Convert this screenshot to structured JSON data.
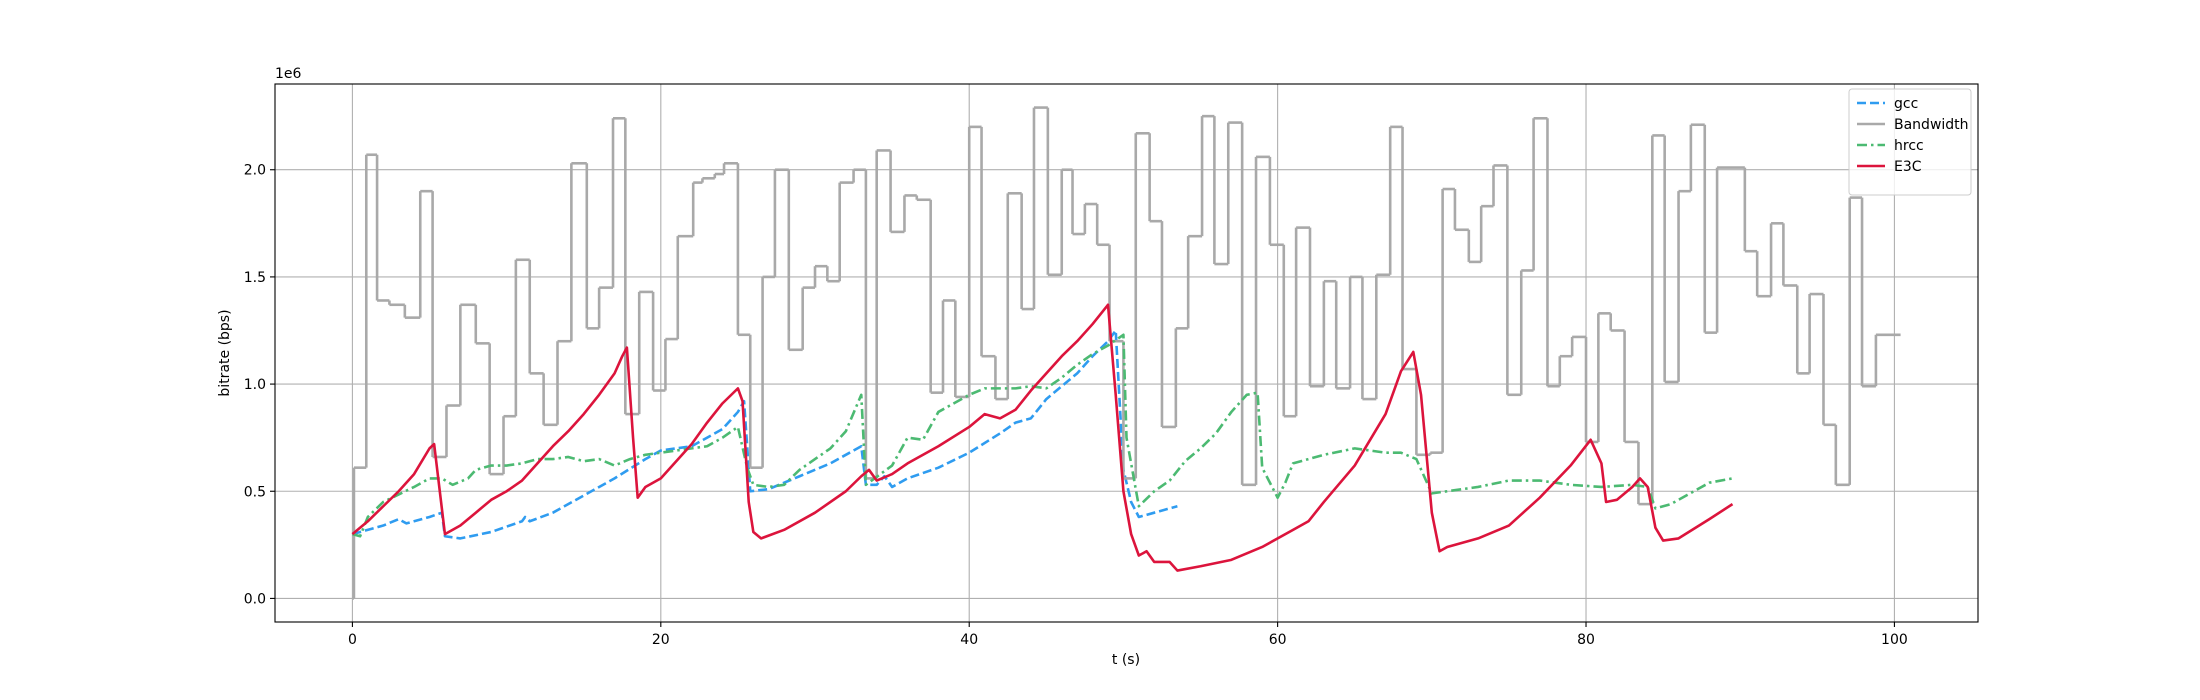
{
  "chart_data": {
    "type": "line",
    "xlabel": "t (s)",
    "ylabel": "bitrate (bps)",
    "y_offset_label": "1e6",
    "xlim": [
      -5.02,
      105.42
    ],
    "ylim": [
      -0.11,
      2.4
    ],
    "xticks": [
      0,
      20,
      40,
      60,
      80,
      100
    ],
    "yticks": [
      {
        "value": 0,
        "label": "0.0"
      },
      0.5,
      {
        "value": 1,
        "label": "1.0"
      },
      1.5,
      {
        "value": 2,
        "label": "2.0"
      }
    ],
    "grid": true,
    "legend": "upper right",
    "series": [
      {
        "name": "gcc",
        "color": "#2f9cf0",
        "linestyle": "dashed",
        "drawstyle": "default",
        "x": [
          0,
          2,
          3,
          3.5,
          5,
          5.8,
          6,
          7,
          9,
          11,
          11.2,
          11.5,
          13,
          15,
          17,
          19,
          20,
          22,
          24,
          25,
          25.4,
          25.8,
          27,
          29,
          31,
          33,
          33.3,
          34,
          34.5,
          35,
          36,
          38,
          40,
          42,
          43,
          44,
          45,
          47,
          48,
          49,
          49.5,
          50,
          50.5,
          51,
          52,
          53.5
        ],
        "values": [
          0.3,
          0.34,
          0.37,
          0.35,
          0.38,
          0.4,
          0.29,
          0.28,
          0.31,
          0.36,
          0.38,
          0.36,
          0.4,
          0.48,
          0.56,
          0.65,
          0.69,
          0.71,
          0.79,
          0.87,
          0.92,
          0.5,
          0.51,
          0.57,
          0.63,
          0.71,
          0.53,
          0.53,
          0.57,
          0.52,
          0.56,
          0.61,
          0.68,
          0.77,
          0.82,
          0.84,
          0.93,
          1.05,
          1.13,
          1.2,
          1.25,
          0.6,
          0.45,
          0.38,
          0.4,
          0.43
        ]
      },
      {
        "name": "Bandwidth",
        "color": "#a9a9a9",
        "linestyle": "solid",
        "drawstyle": "steps-post",
        "x": [
          0,
          0.1,
          0.9,
          1.6,
          2.4,
          3.4,
          4.4,
          5.2,
          6.1,
          7.0,
          8.0,
          8.9,
          9.8,
          10.6,
          11.5,
          12.4,
          13.3,
          14.2,
          15.2,
          16.0,
          16.9,
          17.7,
          18.6,
          19.5,
          20.3,
          21.1,
          22.1,
          22.7,
          23.5,
          24.1,
          25.0,
          25.8,
          26.6,
          27.4,
          28.3,
          29.2,
          30.0,
          30.8,
          31.6,
          32.5,
          33.3,
          34.0,
          34.9,
          35.8,
          36.6,
          37.5,
          38.3,
          39.1,
          40.0,
          40.8,
          41.7,
          42.5,
          43.4,
          44.2,
          45.1,
          46.0,
          46.7,
          47.5,
          48.3,
          49.1,
          50.0,
          50.8,
          51.7,
          52.5,
          53.4,
          54.2,
          55.1,
          55.9,
          56.8,
          57.7,
          58.6,
          59.5,
          60.4,
          61.2,
          62.1,
          63.0,
          63.8,
          64.7,
          65.5,
          66.4,
          67.3,
          68.1,
          69.0,
          69.9,
          70.7,
          71.5,
          72.4,
          73.2,
          74.0,
          74.9,
          75.8,
          76.6,
          77.5,
          78.3,
          79.1,
          80.0,
          80.8,
          81.6,
          82.5,
          83.4,
          84.3,
          85.1,
          86.0,
          86.8,
          87.7,
          88.5,
          90.3,
          91.1,
          92.0,
          92.8,
          93.7,
          94.5,
          95.4,
          96.2,
          97.1,
          97.9,
          98.8,
          100.4
        ],
        "values": [
          0,
          0.61,
          2.07,
          1.39,
          1.37,
          1.31,
          1.9,
          0.66,
          0.9,
          1.37,
          1.19,
          0.58,
          0.85,
          1.58,
          1.05,
          0.81,
          1.2,
          2.03,
          1.26,
          1.45,
          2.24,
          0.86,
          1.43,
          0.97,
          1.21,
          1.69,
          1.94,
          1.96,
          1.98,
          2.03,
          1.23,
          0.61,
          1.5,
          2.0,
          1.16,
          1.45,
          1.55,
          1.48,
          1.94,
          2.0,
          0.56,
          2.09,
          1.71,
          1.88,
          1.86,
          0.96,
          1.39,
          0.94,
          2.2,
          1.13,
          0.93,
          1.89,
          1.35,
          2.29,
          1.51,
          2.0,
          1.7,
          1.84,
          1.65,
          1.2,
          0.56,
          2.17,
          1.76,
          0.8,
          1.26,
          1.69,
          2.25,
          1.56,
          2.22,
          0.53,
          2.06,
          1.65,
          0.85,
          1.73,
          0.99,
          1.48,
          0.98,
          1.5,
          0.93,
          1.51,
          2.2,
          1.07,
          0.67,
          0.68,
          1.91,
          1.72,
          1.57,
          1.83,
          2.02,
          0.95,
          1.53,
          2.24,
          0.99,
          1.13,
          1.22,
          0.73,
          1.33,
          1.25,
          0.73,
          0.44,
          2.16,
          1.01,
          1.9,
          2.21,
          1.24,
          2.01,
          1.62,
          1.41,
          1.75,
          1.46,
          1.05,
          1.42,
          0.81,
          0.53,
          1.87,
          0.99,
          1.23,
          1.23
        ]
      },
      {
        "name": "hrcc",
        "color": "#4cba72",
        "linestyle": "dashdot",
        "drawstyle": "default",
        "x": [
          0,
          0.5,
          1,
          2,
          4,
          5,
          5.8,
          6.5,
          7.5,
          8,
          9,
          10,
          11,
          12,
          13,
          14,
          15,
          16,
          17,
          18,
          19,
          21,
          23,
          24,
          25,
          25.6,
          26,
          27,
          28,
          29,
          31,
          32,
          33,
          33.3,
          35,
          36,
          37,
          38,
          39,
          40,
          41,
          43,
          44,
          45,
          46,
          47,
          48,
          49,
          50,
          50.2,
          51,
          52,
          53,
          54,
          55,
          56,
          57,
          58,
          58.7,
          59,
          60,
          60.5,
          61,
          63,
          65,
          67,
          68,
          69,
          70,
          71,
          73,
          75,
          77,
          79,
          81,
          83,
          84,
          84.5,
          85.5,
          87,
          88,
          89.5
        ],
        "values": [
          0.3,
          0.29,
          0.38,
          0.45,
          0.52,
          0.56,
          0.56,
          0.53,
          0.56,
          0.6,
          0.62,
          0.62,
          0.63,
          0.65,
          0.65,
          0.66,
          0.64,
          0.65,
          0.62,
          0.65,
          0.67,
          0.69,
          0.71,
          0.75,
          0.8,
          0.61,
          0.53,
          0.52,
          0.53,
          0.6,
          0.7,
          0.78,
          0.95,
          0.53,
          0.62,
          0.75,
          0.74,
          0.87,
          0.91,
          0.95,
          0.98,
          0.98,
          0.99,
          0.98,
          1.03,
          1.09,
          1.14,
          1.18,
          1.23,
          0.75,
          0.43,
          0.5,
          0.55,
          0.64,
          0.7,
          0.77,
          0.87,
          0.95,
          0.96,
          0.61,
          0.47,
          0.54,
          0.63,
          0.67,
          0.7,
          0.68,
          0.68,
          0.65,
          0.49,
          0.5,
          0.52,
          0.55,
          0.55,
          0.53,
          0.52,
          0.53,
          0.52,
          0.42,
          0.44,
          0.5,
          0.54,
          0.56
        ]
      },
      {
        "name": "E3C",
        "color": "#dc143c",
        "linestyle": "solid",
        "drawstyle": "default",
        "x": [
          0,
          1,
          2,
          3,
          4,
          5,
          5.3,
          6,
          7,
          8,
          9,
          10,
          11,
          12,
          13,
          14,
          15,
          16,
          17,
          17.5,
          17.8,
          18.2,
          18.5,
          19,
          20,
          21,
          22,
          23,
          24,
          25,
          25.3,
          25.7,
          26,
          26.5,
          28,
          30,
          32,
          33,
          33.5,
          34,
          35,
          36,
          38,
          40,
          41,
          42,
          43,
          44,
          45,
          46,
          47,
          48,
          49,
          49.5,
          50,
          50.5,
          51,
          51.5,
          52,
          53,
          53.5,
          55,
          57,
          59,
          61,
          62,
          63,
          65,
          67,
          68,
          68.8,
          69.3,
          70,
          70.5,
          71,
          73,
          75,
          77,
          79,
          80.3,
          81,
          81.3,
          82,
          83,
          83.5,
          84,
          84.5,
          85,
          86,
          88,
          89.5
        ],
        "values": [
          0.3,
          0.36,
          0.43,
          0.5,
          0.58,
          0.7,
          0.72,
          0.3,
          0.34,
          0.4,
          0.46,
          0.5,
          0.55,
          0.63,
          0.71,
          0.78,
          0.86,
          0.95,
          1.05,
          1.13,
          1.17,
          0.75,
          0.47,
          0.52,
          0.56,
          0.64,
          0.72,
          0.82,
          0.91,
          0.98,
          0.92,
          0.45,
          0.31,
          0.28,
          0.32,
          0.4,
          0.5,
          0.57,
          0.6,
          0.55,
          0.58,
          0.63,
          0.71,
          0.8,
          0.86,
          0.84,
          0.88,
          0.97,
          1.05,
          1.13,
          1.2,
          1.28,
          1.37,
          0.95,
          0.5,
          0.3,
          0.2,
          0.22,
          0.17,
          0.17,
          0.13,
          0.15,
          0.18,
          0.24,
          0.32,
          0.36,
          0.45,
          0.62,
          0.86,
          1.06,
          1.15,
          0.95,
          0.4,
          0.22,
          0.24,
          0.28,
          0.34,
          0.47,
          0.62,
          0.74,
          0.63,
          0.45,
          0.46,
          0.52,
          0.56,
          0.52,
          0.33,
          0.27,
          0.28,
          0.37,
          0.44
        ]
      }
    ]
  }
}
